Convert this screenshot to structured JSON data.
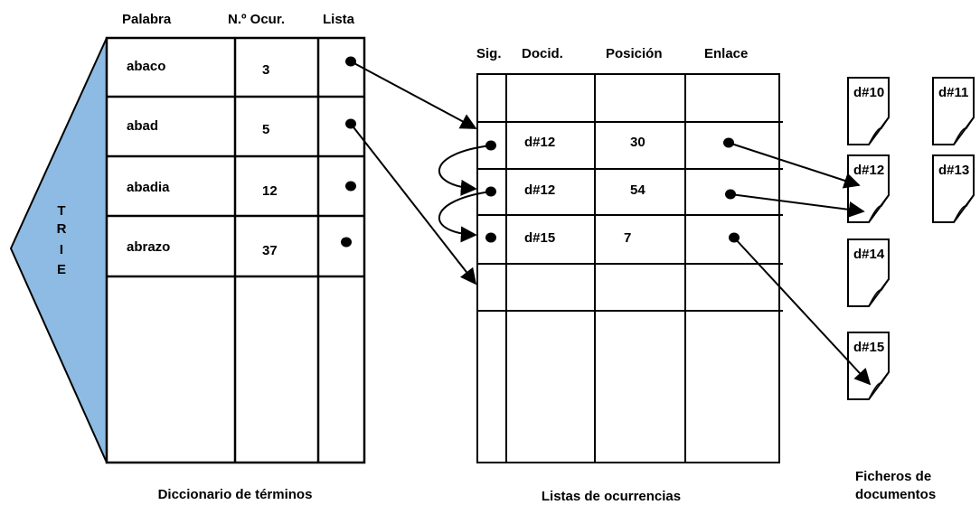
{
  "trie": [
    "T",
    "R",
    "I",
    "E"
  ],
  "dictionary": {
    "headers": [
      "Palabra",
      "N.º Ocur.",
      "Lista"
    ],
    "rows": [
      [
        "abaco",
        3
      ],
      [
        "abad",
        5
      ],
      [
        "abadia",
        12
      ],
      [
        "abrazo",
        37
      ]
    ],
    "caption": "Diccionario de términos"
  },
  "occurrences": {
    "headers": [
      "Sig.",
      "Docid.",
      "Posición",
      "Enlace"
    ],
    "rows": [
      [
        "d#12",
        30
      ],
      [
        "d#12",
        54
      ],
      [
        "d#15",
        7
      ]
    ],
    "caption": "Listas de  ocurrencias"
  },
  "documents": {
    "files": [
      "d#10",
      "d#11",
      "d#12",
      "d#13",
      "d#14",
      "d#15"
    ],
    "caption": [
      "Ficheros de",
      "documentos"
    ]
  }
}
